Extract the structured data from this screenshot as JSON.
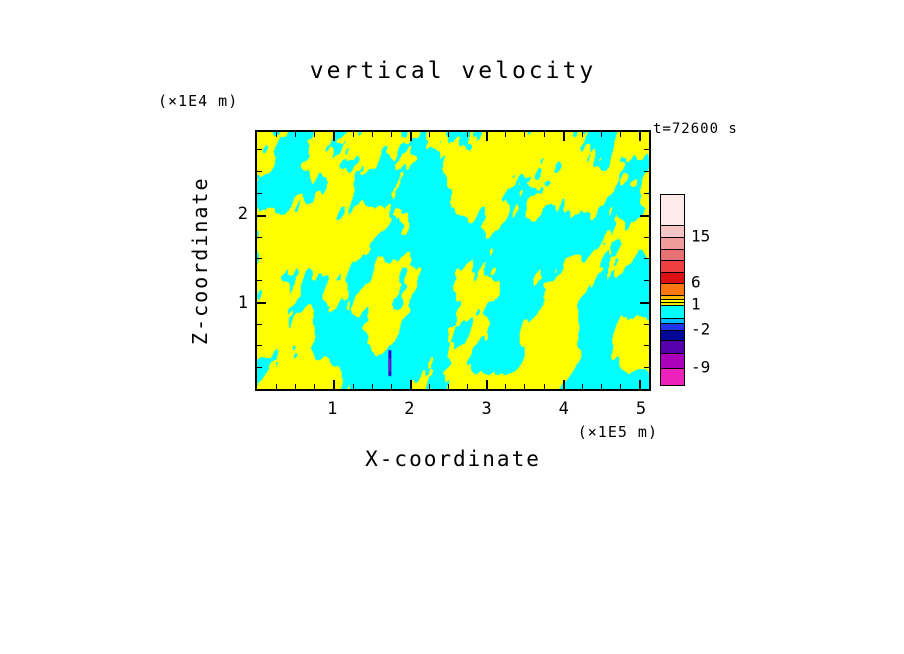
{
  "chart_data": {
    "type": "heatmap",
    "title": "vertical velocity",
    "xlabel": "X-coordinate",
    "ylabel": "Z-coordinate",
    "x_unit": "(×1E5 m)",
    "y_unit": "(×1E4 m)",
    "timestamp": "t=72600 s",
    "x_ticks": [
      1,
      2,
      3,
      4,
      5
    ],
    "y_ticks": [
      1,
      2
    ],
    "x_minor_step": 0.25,
    "y_minor_step": 0.25,
    "xlim": [
      0,
      5.13
    ],
    "ylim": [
      0,
      2.95
    ],
    "grid": false,
    "legend_position": "right-colorbar",
    "field": {
      "description": "turbulent two-phase vertical velocity field: yellow = weak updraft (approx 0 to 1), cyan = weak downdraft (approx -1 to 0), one small strong-negative streak near bottom center-left",
      "positive_color": "#ffff00",
      "negative_color": "#00ffff",
      "anomaly_color": "#3a00c8"
    },
    "colorbar": {
      "labels": [
        {
          "text": "15",
          "offset": 42
        },
        {
          "text": "6",
          "offset": 88
        },
        {
          "text": "1",
          "offset": 110
        },
        {
          "text": "-2",
          "offset": 135
        },
        {
          "text": "-9",
          "offset": 173
        }
      ],
      "segments": [
        {
          "color": "#ffe9e9",
          "h": 30
        },
        {
          "color": "#f6c4c4",
          "h": 12
        },
        {
          "color": "#f09c9c",
          "h": 12
        },
        {
          "color": "#e87272",
          "h": 11
        },
        {
          "color": "#ee4040",
          "h": 12
        },
        {
          "color": "#dd1111",
          "h": 11
        },
        {
          "color": "#ff7711",
          "h": 12
        },
        {
          "color": "#ffbb00",
          "h": 4
        },
        {
          "color": "#ffff00",
          "h": 3
        },
        {
          "color": "#eeee00",
          "h": 3
        },
        {
          "color": "#00ffff",
          "h": 13
        },
        {
          "color": "#00bbff",
          "h": 5
        },
        {
          "color": "#2233ee",
          "h": 7
        },
        {
          "color": "#000899",
          "h": 10
        },
        {
          "color": "#5500aa",
          "h": 13
        },
        {
          "color": "#aa00bb",
          "h": 15
        },
        {
          "color": "#ee22bb",
          "h": 17
        }
      ]
    }
  }
}
